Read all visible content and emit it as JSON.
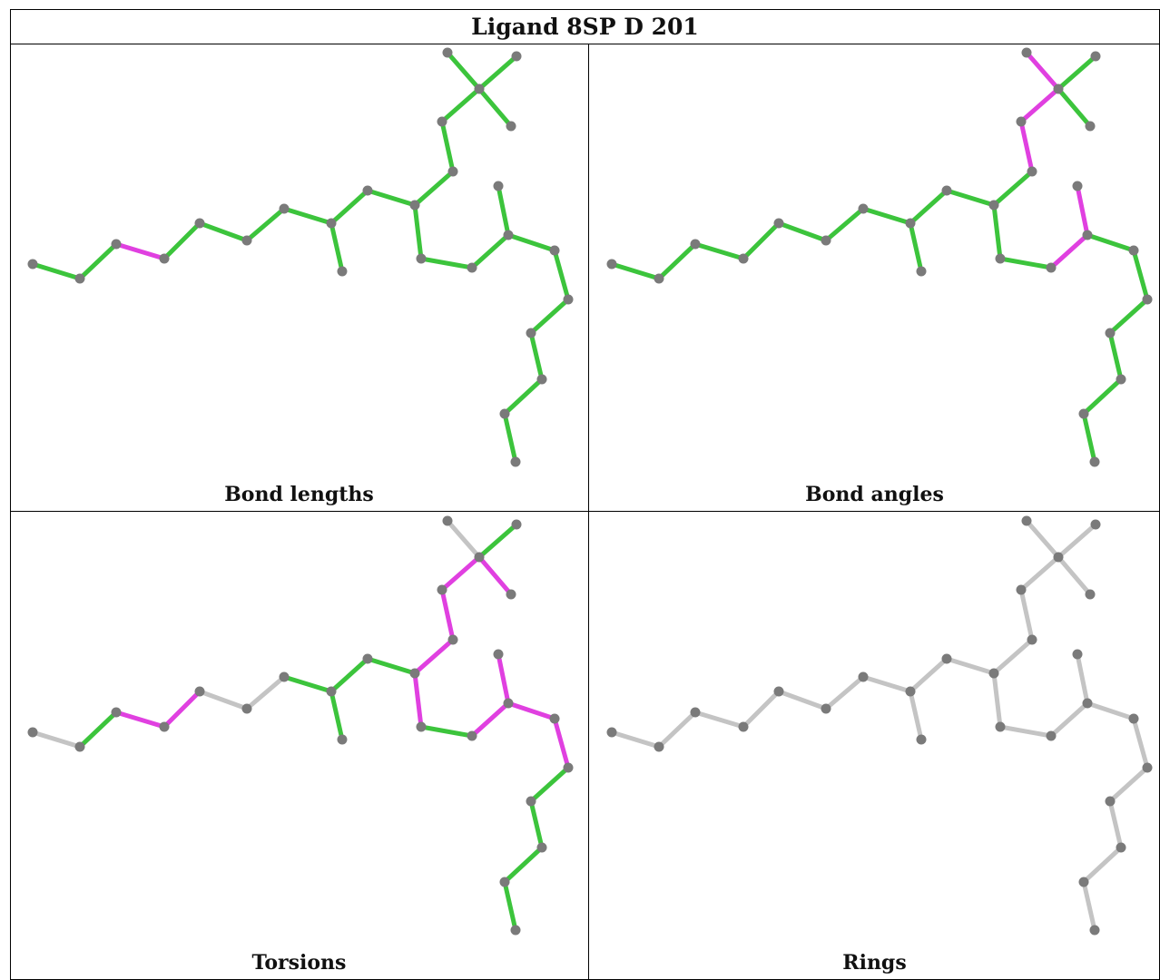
{
  "title": "Ligand 8SP D 201",
  "colors": {
    "ok": "#3cc43c",
    "outlier": "#e040e0",
    "none": "#c4c4c4",
    "atom": "#7a7a7a"
  },
  "panels": [
    {
      "caption": "Bond lengths",
      "bonds": [
        "g",
        "g",
        "m",
        "g",
        "g",
        "g",
        "g",
        "g",
        "g",
        "g",
        "g",
        "g",
        "g",
        "g",
        "g",
        "g",
        "g",
        "g",
        "g",
        "g",
        "g",
        "g",
        "g",
        "g",
        "g",
        "g",
        "g",
        "g",
        "g"
      ]
    },
    {
      "caption": "Bond angles",
      "bonds": [
        "g",
        "g",
        "g",
        "g",
        "g",
        "g",
        "g",
        "g",
        "g",
        "g",
        "g",
        "m",
        "m",
        "m",
        "g",
        "g",
        "g",
        "g",
        "m",
        "m",
        "g",
        "g",
        "g",
        "g",
        "g",
        "g",
        "g",
        "g",
        "g"
      ]
    },
    {
      "caption": "Torsions",
      "bonds": [
        "n",
        "g",
        "m",
        "m",
        "n",
        "n",
        "g",
        "g",
        "g",
        "g",
        "m",
        "m",
        "m",
        "n",
        "g",
        "m",
        "m",
        "g",
        "m",
        "m",
        "m",
        "m",
        "g",
        "g",
        "g",
        "g",
        "n",
        "g",
        "n"
      ]
    },
    {
      "caption": "Rings",
      "bonds": [
        "n",
        "n",
        "n",
        "n",
        "n",
        "n",
        "n",
        "n",
        "n",
        "n",
        "n",
        "n",
        "n",
        "n",
        "n",
        "n",
        "n",
        "n",
        "n",
        "n",
        "n",
        "n",
        "n",
        "n",
        "n",
        "n",
        "n",
        "n",
        "n"
      ]
    }
  ]
}
